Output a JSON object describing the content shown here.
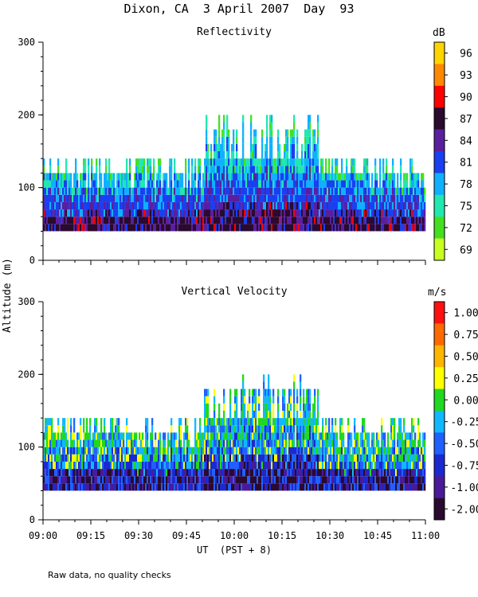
{
  "title": "Dixon, CA  3 April 2007  Day  93",
  "footnote": "Raw data, no quality checks",
  "chart_data": [
    {
      "type": "heatmap",
      "title": "Reflectivity",
      "xlabel": "UT  (PST + 8)",
      "ylabel": "Altitude (m)",
      "xticks": [
        "09:00",
        "09:15",
        "09:30",
        "09:45",
        "10:00",
        "10:15",
        "10:30",
        "10:45",
        "11:00"
      ],
      "yticks": [
        0,
        100,
        200,
        300
      ],
      "ylim": [
        0,
        300
      ],
      "xlim_minutes": [
        0,
        120
      ],
      "colorbar_unit": "dB",
      "colorbar_labels": [
        "96",
        "93",
        "90",
        "87",
        "84",
        "81",
        "78",
        "75",
        "72",
        "69"
      ],
      "colorbar_colors": [
        "#ffd400",
        "#ff8800",
        "#ff0000",
        "#2a0a2e",
        "#5a1f9e",
        "#1a3ff0",
        "#10b0ff",
        "#20e8b0",
        "#44e020",
        "#c8ff20"
      ],
      "data_base_altitude": 40,
      "echo_top_typical": 120,
      "echo_top_max": 200
    },
    {
      "type": "heatmap",
      "title": "Vertical Velocity",
      "xlabel": "UT  (PST + 8)",
      "ylabel": "Altitude (m)",
      "xticks": [
        "09:00",
        "09:15",
        "09:30",
        "09:45",
        "10:00",
        "10:15",
        "10:30",
        "10:45",
        "11:00"
      ],
      "yticks": [
        0,
        100,
        200,
        300
      ],
      "ylim": [
        0,
        300
      ],
      "xlim_minutes": [
        0,
        120
      ],
      "colorbar_unit": "m/s",
      "colorbar_labels": [
        "1.00",
        "0.75",
        "0.50",
        "0.25",
        "0.00",
        "-0.25",
        "-0.50",
        "-0.75",
        "-1.00",
        "-2.00"
      ],
      "colorbar_colors": [
        "#ff1010",
        "#ff6a00",
        "#ffb400",
        "#ffff00",
        "#20d820",
        "#10b8ff",
        "#2060ff",
        "#1a2ad0",
        "#4a1a9a",
        "#2a0a2e"
      ],
      "data_base_altitude": 40,
      "echo_top_typical": 120,
      "echo_top_max": 200
    }
  ]
}
